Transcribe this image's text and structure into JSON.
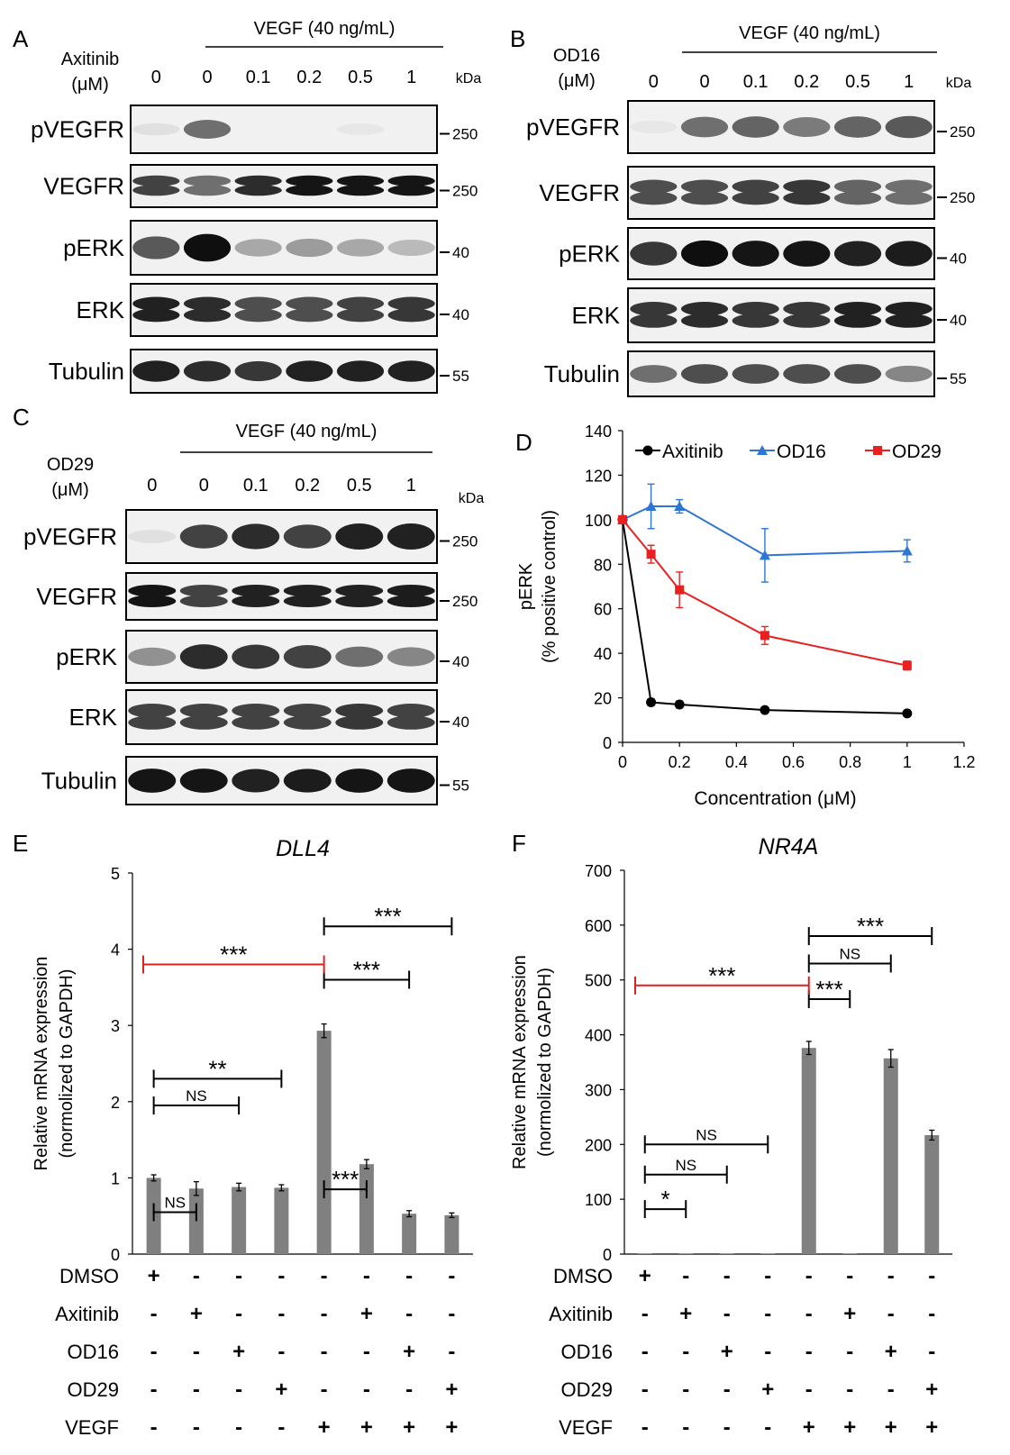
{
  "panel_letters": {
    "a": "A",
    "b": "B",
    "c": "C",
    "d": "D",
    "e": "E",
    "f": "F"
  },
  "blots": [
    {
      "id": "A",
      "header": "VEGF (40 ng/mL)",
      "drug": "Axitinib",
      "unit": "(μM)",
      "conc": [
        "0",
        "0",
        "0.1",
        "0.2",
        "0.5",
        "1"
      ],
      "kda_label": "kDa",
      "rows": [
        {
          "label": "pVEGFR",
          "mw": "250",
          "intensity": [
            0.05,
            0.55,
            0,
            0,
            0.02,
            0
          ]
        },
        {
          "label": "VEGFR",
          "mw": "250",
          "intensity": [
            0.75,
            0.55,
            0.85,
            0.95,
            0.95,
            0.95
          ]
        },
        {
          "label": "pERK",
          "mw": "40",
          "intensity": [
            0.65,
            0.98,
            0.3,
            0.35,
            0.3,
            0.22
          ]
        },
        {
          "label": "ERK",
          "mw": "40",
          "intensity": [
            0.9,
            0.85,
            0.7,
            0.7,
            0.75,
            0.8
          ]
        },
        {
          "label": "Tubulin",
          "mw": "55",
          "intensity": [
            0.9,
            0.85,
            0.8,
            0.9,
            0.9,
            0.9
          ]
        }
      ]
    },
    {
      "id": "B",
      "header": "VEGF (40 ng/mL)",
      "drug": "OD16",
      "unit": "(μM)",
      "conc": [
        "0",
        "0",
        "0.1",
        "0.2",
        "0.5",
        "1"
      ],
      "kda_label": "kDa",
      "rows": [
        {
          "label": "pVEGFR",
          "mw": "250",
          "intensity": [
            0.02,
            0.55,
            0.6,
            0.5,
            0.6,
            0.65
          ]
        },
        {
          "label": "VEGFR",
          "mw": "250",
          "intensity": [
            0.7,
            0.7,
            0.75,
            0.8,
            0.6,
            0.55
          ]
        },
        {
          "label": "pERK",
          "mw": "40",
          "intensity": [
            0.8,
            0.98,
            0.95,
            0.95,
            0.9,
            0.92
          ]
        },
        {
          "label": "ERK",
          "mw": "40",
          "intensity": [
            0.8,
            0.85,
            0.8,
            0.8,
            0.9,
            0.9
          ]
        },
        {
          "label": "Tubulin",
          "mw": "55",
          "intensity": [
            0.55,
            0.7,
            0.7,
            0.7,
            0.7,
            0.45
          ]
        }
      ]
    },
    {
      "id": "C",
      "header": "VEGF (40 ng/mL)",
      "drug": "OD29",
      "unit": "(μM)",
      "conc": [
        "0",
        "0",
        "0.1",
        "0.2",
        "0.5",
        "1"
      ],
      "kda_label": "kDa",
      "rows": [
        {
          "label": "pVEGFR",
          "mw": "250",
          "intensity": [
            0.05,
            0.75,
            0.85,
            0.75,
            0.9,
            0.9
          ]
        },
        {
          "label": "VEGFR",
          "mw": "250",
          "intensity": [
            0.95,
            0.75,
            0.9,
            0.9,
            0.9,
            0.92
          ]
        },
        {
          "label": "pERK",
          "mw": "40",
          "intensity": [
            0.4,
            0.85,
            0.8,
            0.75,
            0.55,
            0.45
          ]
        },
        {
          "label": "ERK",
          "mw": "40",
          "intensity": [
            0.75,
            0.75,
            0.75,
            0.75,
            0.8,
            0.75
          ]
        },
        {
          "label": "Tubulin",
          "mw": "55",
          "intensity": [
            0.95,
            0.95,
            0.9,
            0.92,
            0.95,
            0.95
          ]
        }
      ]
    }
  ],
  "colors": {
    "axitinib": "#000000",
    "od16": "#2e75d6",
    "od29": "#e82020",
    "bar": "#808080",
    "bracket_red": "#e02020"
  },
  "chart_data": [
    {
      "id": "D",
      "type": "line",
      "title": "",
      "xlabel": "Concentration  (μM)",
      "ylabel_lines": [
        "pERK",
        "(% positive control)"
      ],
      "xlim": [
        0,
        1.2
      ],
      "ylim": [
        0,
        140
      ],
      "xticks": [
        "0",
        "0.2",
        "0.4",
        "0.6",
        "0.8",
        "1",
        "1.2"
      ],
      "yticks": [
        "0",
        "20",
        "40",
        "60",
        "80",
        "100",
        "120",
        "140"
      ],
      "x": [
        0,
        0.1,
        0.2,
        0.5,
        1
      ],
      "series": [
        {
          "name": "Axitinib",
          "marker": "circle",
          "values": [
            100,
            18,
            17,
            14.5,
            13
          ],
          "err": [
            0,
            1.5,
            1.5,
            1,
            1
          ]
        },
        {
          "name": "OD16",
          "marker": "triangle",
          "values": [
            100,
            106,
            106,
            84,
            86
          ],
          "err": [
            0,
            10,
            3,
            12,
            5
          ]
        },
        {
          "name": "OD29",
          "marker": "square",
          "values": [
            100,
            84.5,
            68.5,
            48,
            34.5
          ],
          "err": [
            0,
            4,
            8,
            4,
            2
          ]
        }
      ],
      "legend": "top"
    },
    {
      "id": "E",
      "type": "bar",
      "title": "DLL4",
      "ylabel_lines": [
        "Relative mRNA expression",
        "(normolized to GAPDH)"
      ],
      "ylim": [
        0,
        5
      ],
      "yticks": [
        "0",
        "1",
        "2",
        "3",
        "4",
        "5"
      ],
      "values": [
        1.0,
        0.86,
        0.88,
        0.87,
        2.93,
        1.18,
        0.53,
        0.51
      ],
      "err": [
        0.04,
        0.09,
        0.05,
        0.04,
        0.09,
        0.06,
        0.04,
        0.03
      ],
      "brackets": [
        {
          "from": 0,
          "to": 1,
          "level": 0.55,
          "label": "NS"
        },
        {
          "from": 0,
          "to": 2,
          "level": 1.95,
          "label": "NS"
        },
        {
          "from": 0,
          "to": 3,
          "level": 2.3,
          "label": "**"
        },
        {
          "from": 4,
          "to": 5,
          "level": 0.85,
          "label": "***"
        },
        {
          "from": 4,
          "to": 6,
          "level": 3.6,
          "label": "***"
        },
        {
          "from": 4,
          "to": 7,
          "level": 4.3,
          "label": "***"
        },
        {
          "from": -0.2,
          "to": 4,
          "level": 3.8,
          "label": "***",
          "red": true
        }
      ],
      "row_labels": [
        "DMSO",
        "Axitinib",
        "OD16",
        "OD29",
        "VEGF"
      ],
      "signs": [
        [
          "+",
          "-",
          "-",
          "-",
          "-",
          "-",
          "-",
          "-"
        ],
        [
          "-",
          "+",
          "-",
          "-",
          "-",
          "+",
          "-",
          "-"
        ],
        [
          "-",
          "-",
          "+",
          "-",
          "-",
          "-",
          "+",
          "-"
        ],
        [
          "-",
          "-",
          "-",
          "+",
          "-",
          "-",
          "-",
          "+"
        ],
        [
          "-",
          "-",
          "-",
          "-",
          "+",
          "+",
          "+",
          "+"
        ]
      ]
    },
    {
      "id": "F",
      "type": "bar",
      "title": "NR4A",
      "ylabel_lines": [
        "Relative mRNA expression",
        "(normolized to GAPDH)"
      ],
      "ylim": [
        0,
        700
      ],
      "yticks": [
        "0",
        "100",
        "200",
        "300",
        "400",
        "500",
        "600",
        "700"
      ],
      "values": [
        1,
        1,
        1,
        1,
        376,
        1,
        357,
        217
      ],
      "err": [
        0,
        0,
        0,
        0,
        12,
        0,
        16,
        9
      ],
      "brackets": [
        {
          "from": 0,
          "to": 1,
          "level": 82,
          "label": "*"
        },
        {
          "from": 0,
          "to": 2,
          "level": 145,
          "label": "NS"
        },
        {
          "from": 0,
          "to": 3,
          "level": 200,
          "label": "NS"
        },
        {
          "from": 4,
          "to": 5,
          "level": 465,
          "label": "***"
        },
        {
          "from": 4,
          "to": 6,
          "level": 530,
          "label": "NS"
        },
        {
          "from": 4,
          "to": 7,
          "level": 580,
          "label": "***"
        },
        {
          "from": -0.2,
          "to": 4,
          "level": 490,
          "label": "***",
          "red": true
        }
      ],
      "row_labels": [
        "DMSO",
        "Axitinib",
        "OD16",
        "OD29",
        "VEGF"
      ],
      "signs": [
        [
          "+",
          "-",
          "-",
          "-",
          "-",
          "-",
          "-",
          "-"
        ],
        [
          "-",
          "+",
          "-",
          "-",
          "-",
          "+",
          "-",
          "-"
        ],
        [
          "-",
          "-",
          "+",
          "-",
          "-",
          "-",
          "+",
          "-"
        ],
        [
          "-",
          "-",
          "-",
          "+",
          "-",
          "-",
          "-",
          "+"
        ],
        [
          "-",
          "-",
          "-",
          "-",
          "+",
          "+",
          "+",
          "+"
        ]
      ]
    }
  ]
}
